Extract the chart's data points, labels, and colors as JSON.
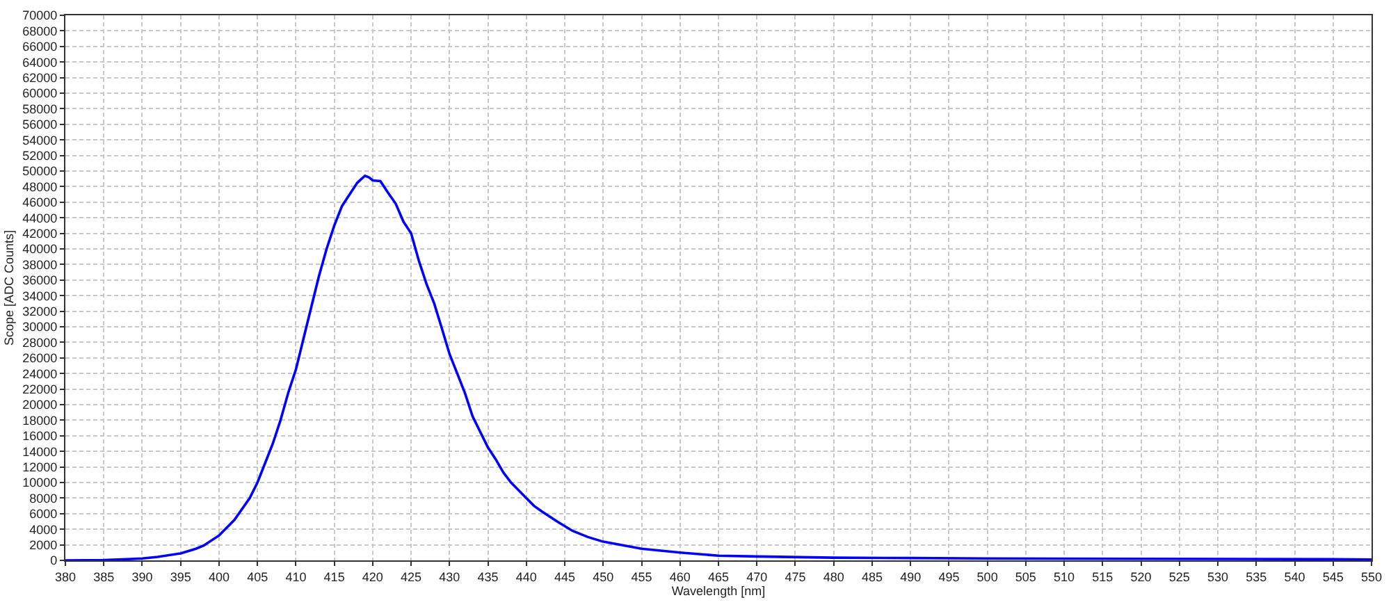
{
  "chart_data": {
    "type": "line",
    "xlabel": "Wavelength [nm]",
    "ylabel": "Scope [ADC Counts]",
    "series": [
      {
        "color": "#0000ff",
        "x": [
          380,
          385,
          388,
          390,
          392,
          395,
          397,
          398,
          400,
          402,
          404,
          405,
          406,
          407,
          408,
          409,
          410,
          411,
          412,
          413,
          414,
          415,
          416,
          417,
          418,
          419,
          419.5,
          420,
          421,
          422,
          423,
          424,
          425,
          426,
          427,
          428,
          429,
          430,
          431,
          432,
          433,
          434,
          435,
          436,
          437,
          438,
          439,
          440,
          441,
          442,
          444,
          446,
          448,
          450,
          455,
          460,
          465,
          470,
          480,
          490,
          500,
          520,
          545,
          550
        ],
        "values": [
          0,
          50,
          150,
          250,
          450,
          900,
          1500,
          1900,
          3200,
          5200,
          8000,
          10000,
          12500,
          15000,
          18000,
          21500,
          24500,
          28500,
          32500,
          36500,
          40000,
          43000,
          45500,
          47000,
          48500,
          49400,
          49200,
          48800,
          48700,
          47200,
          45800,
          43500,
          42000,
          38500,
          35500,
          33000,
          29800,
          26500,
          24000,
          21500,
          18500,
          16500,
          14500,
          13000,
          11300,
          10000,
          9000,
          8000,
          7000,
          6300,
          5000,
          3800,
          3000,
          2400,
          1500,
          1000,
          600,
          500,
          350,
          300,
          250,
          200,
          150,
          100
        ]
      }
    ],
    "xlim": [
      380,
      550
    ],
    "xticks": [
      380,
      385,
      390,
      395,
      400,
      405,
      410,
      415,
      420,
      425,
      430,
      435,
      440,
      445,
      450,
      455,
      460,
      465,
      470,
      475,
      480,
      485,
      490,
      495,
      500,
      505,
      510,
      515,
      520,
      525,
      530,
      535,
      540,
      545,
      550
    ],
    "ylim": [
      0,
      70000
    ],
    "yticks": [
      0,
      2000,
      4000,
      6000,
      8000,
      10000,
      12000,
      14000,
      16000,
      18000,
      20000,
      22000,
      24000,
      26000,
      28000,
      30000,
      32000,
      34000,
      36000,
      38000,
      40000,
      42000,
      44000,
      46000,
      48000,
      50000,
      52000,
      54000,
      56000,
      58000,
      60000,
      62000,
      64000,
      66000,
      68000,
      70000
    ],
    "grid": true,
    "line_style": "solid",
    "marker": "none"
  }
}
